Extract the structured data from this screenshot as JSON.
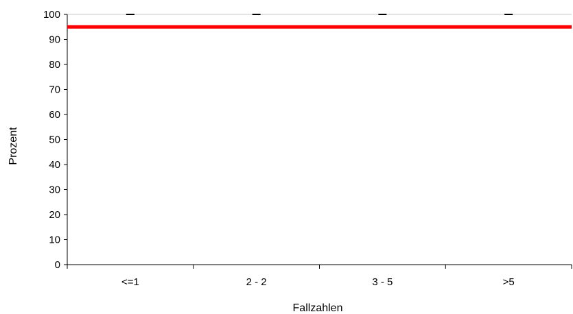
{
  "chart_data": {
    "type": "scatter",
    "title": "",
    "xlabel": "Fallzahlen",
    "ylabel": "Prozent",
    "categories": [
      "<=1",
      "2 - 2",
      "3 - 5",
      ">5"
    ],
    "ylim": [
      0,
      100
    ],
    "yticks": [
      "0",
      "10",
      "20",
      "30",
      "40",
      "50",
      "60",
      "70",
      "80",
      "90",
      "100"
    ],
    "series": [
      {
        "values": [
          100,
          100,
          100,
          100
        ],
        "marker": "dash",
        "color": "#000000"
      }
    ],
    "reference_lines": [
      {
        "y": 95,
        "color": "#ff0000"
      }
    ],
    "grid": true,
    "legend": "none"
  }
}
